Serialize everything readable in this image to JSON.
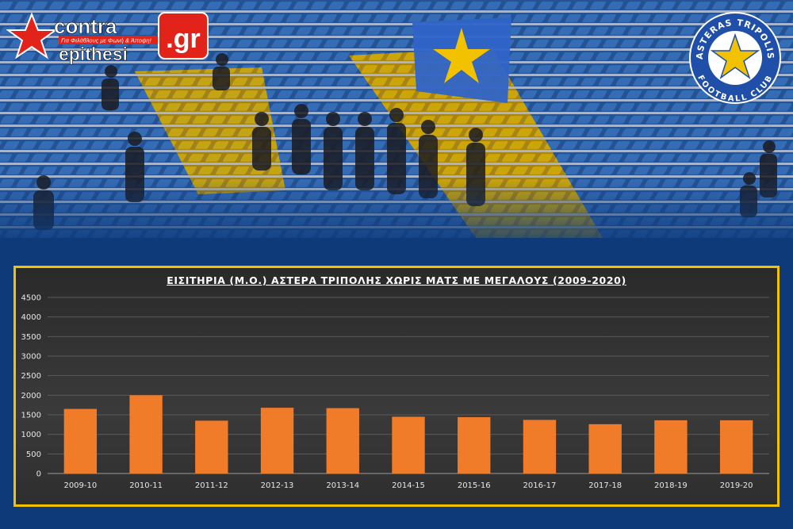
{
  "brand_left": {
    "word1": "contra",
    "word2": "epithesi",
    "suffix": ".gr",
    "tagline": "Για Φιλάθλους με Φωνή & Άποψη!"
  },
  "brand_right": {
    "top_text": "ASTERAS TRIPOLIS",
    "bottom_text": "FOOTBALL CLUB"
  },
  "colors": {
    "background": "#0e3a7a",
    "frame": "#f2c200",
    "bar": "#f07c2a",
    "brand_red": "#e2231a"
  },
  "chart_data": {
    "type": "bar",
    "title": "ΕΙΣΙΤΗΡΙΑ (Μ.Ο.) ΑΣΤΕΡΑ ΤΡΙΠΟΛΗΣ ΧΩΡΙΣ ΜΑΤΣ ΜΕ ΜΕΓΑΛΟΥΣ (2009-2020)",
    "categories": [
      "2009-10",
      "2010-11",
      "2011-12",
      "2012-13",
      "2013-14",
      "2014-15",
      "2015-16",
      "2016-17",
      "2017-18",
      "2018-19",
      "2019-20"
    ],
    "values": [
      1650,
      2000,
      1350,
      1680,
      1670,
      1450,
      1440,
      1370,
      1260,
      1360,
      1360
    ],
    "ylim": [
      0,
      4500
    ],
    "yticks": [
      0,
      500,
      1000,
      1500,
      2000,
      2500,
      3000,
      3500,
      4000,
      4500
    ],
    "grid": true,
    "xlabel": "",
    "ylabel": ""
  }
}
